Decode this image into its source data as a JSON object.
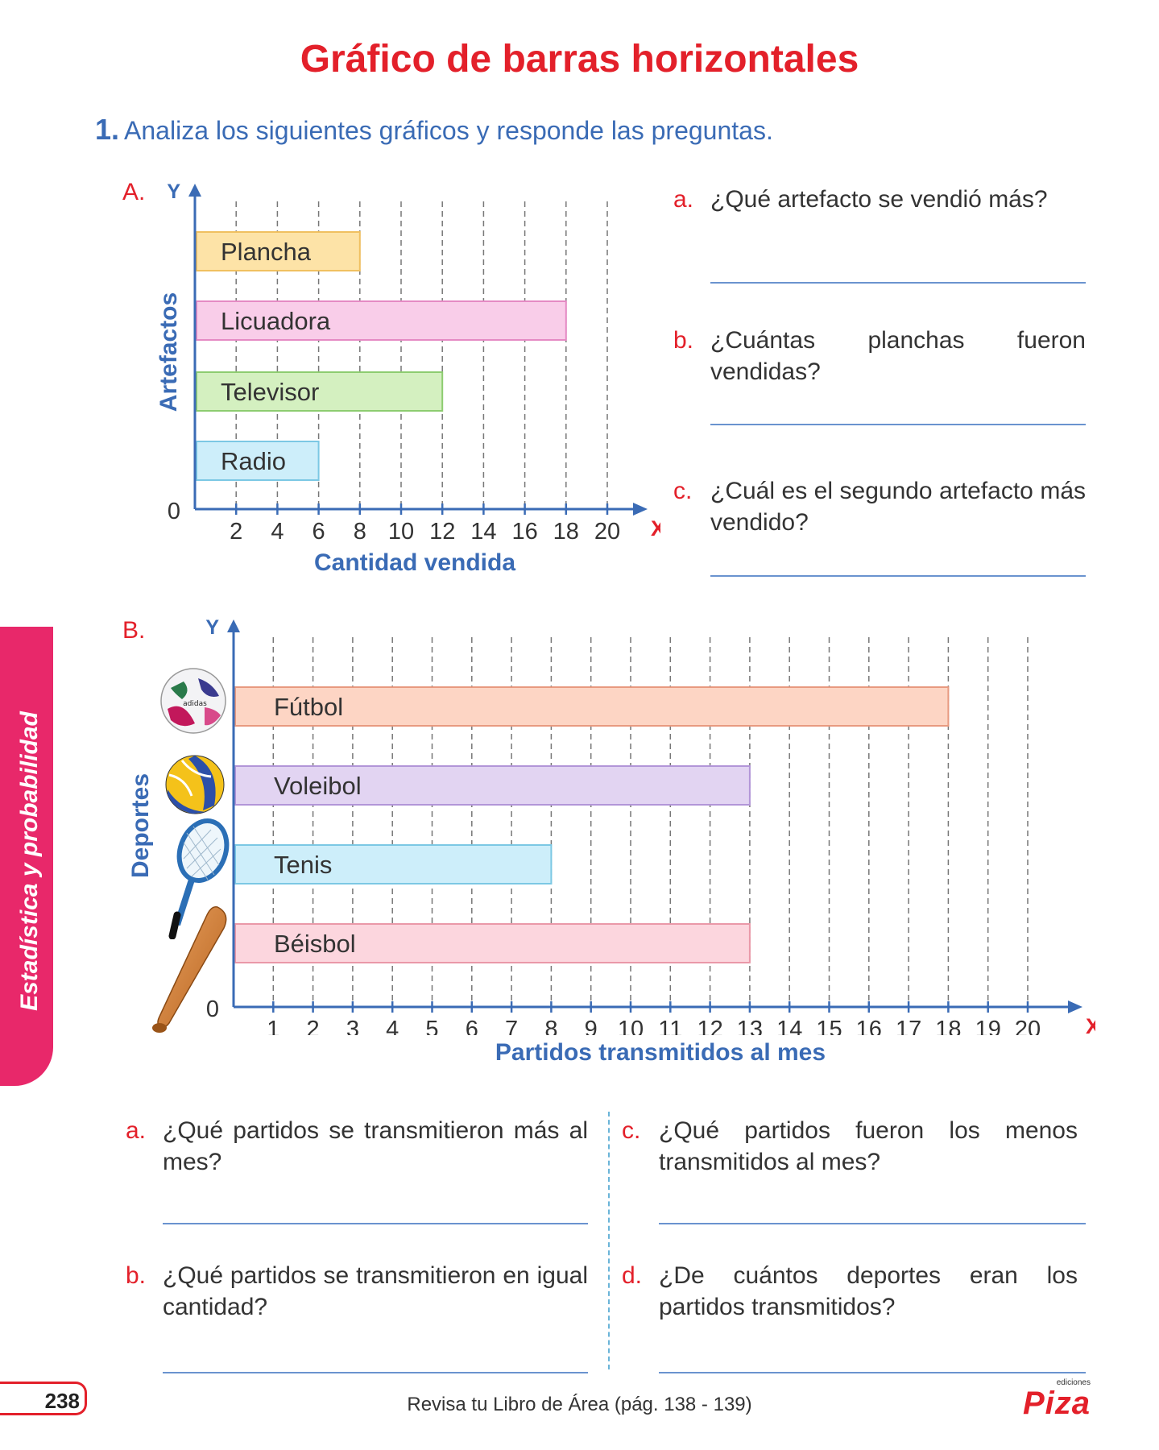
{
  "page": {
    "title": "Gráfico de barras horizontales",
    "instruction_number": "1.",
    "instruction": "Analiza los siguientes gráficos y responde las preguntas.",
    "side_tab": "Estadística y probabilidad",
    "page_number": "238",
    "footer": "Revisa tu Libro de Área (pág. 138 - 139)",
    "publisher_small": "ediciones",
    "publisher": "Piza"
  },
  "chart_data": [
    {
      "type": "bar",
      "orientation": "horizontal",
      "letter": "A.",
      "categories": [
        "Plancha",
        "Licuadora",
        "Televisor",
        "Radio"
      ],
      "values": [
        8,
        18,
        12,
        6
      ],
      "colors": [
        {
          "fill": "#fde3a7",
          "stroke": "#f0c060"
        },
        {
          "fill": "#f9cde9",
          "stroke": "#e58ac4"
        },
        {
          "fill": "#d4f0c0",
          "stroke": "#8dcc70"
        },
        {
          "fill": "#cdeefa",
          "stroke": "#7cc8e4"
        }
      ],
      "xlabel": "Cantidad vendida",
      "ylabel": "Artefactos",
      "x_axis_letter": "X",
      "y_axis_letter": "Y",
      "origin_label": "0",
      "xticks": [
        "2",
        "4",
        "6",
        "8",
        "10",
        "12",
        "14",
        "16",
        "18",
        "20"
      ],
      "xlim": [
        0,
        20
      ],
      "grid": "vertical dashed"
    },
    {
      "type": "bar",
      "orientation": "horizontal",
      "letter": "B.",
      "categories": [
        "Fútbol",
        "Voleibol",
        "Tenis",
        "Béisbol"
      ],
      "values": [
        18,
        13,
        8,
        13
      ],
      "icons": [
        "soccer-ball-icon",
        "volleyball-icon",
        "tennis-racket-icon",
        "baseball-bat-icon"
      ],
      "colors": [
        {
          "fill": "#fdd5c4",
          "stroke": "#e89a80"
        },
        {
          "fill": "#e2d4f2",
          "stroke": "#b295d8"
        },
        {
          "fill": "#cdeefa",
          "stroke": "#7cc8e4"
        },
        {
          "fill": "#fcd6de",
          "stroke": "#ea98a8"
        }
      ],
      "xlabel": "Partidos transmitidos al mes",
      "ylabel": "Deportes",
      "x_axis_letter": "X",
      "y_axis_letter": "Y",
      "origin_label": "0",
      "xticks": [
        "1",
        "2",
        "3",
        "4",
        "5",
        "6",
        "7",
        "8",
        "9",
        "10",
        "11",
        "12",
        "13",
        "14",
        "15",
        "16",
        "17",
        "18",
        "19",
        "20"
      ],
      "xlim": [
        0,
        20
      ],
      "grid": "vertical dashed"
    }
  ],
  "questions_A": [
    {
      "letter": "a.",
      "text": "¿Qué artefacto se vendió más?"
    },
    {
      "letter": "b.",
      "text": "¿Cuántas planchas fueron vendidas?"
    },
    {
      "letter": "c.",
      "text": "¿Cuál es el segundo artefacto más vendido?"
    }
  ],
  "questions_B": [
    {
      "letter": "a.",
      "text": "¿Qué partidos se transmitieron más al mes?"
    },
    {
      "letter": "b.",
      "text": "¿Qué partidos se transmitieron en igual cantidad?"
    },
    {
      "letter": "c.",
      "text": "¿Qué partidos fueron los menos transmitidos al mes?"
    },
    {
      "letter": "d.",
      "text": "¿De cuántos deportes eran los partidos transmitidos?"
    }
  ]
}
